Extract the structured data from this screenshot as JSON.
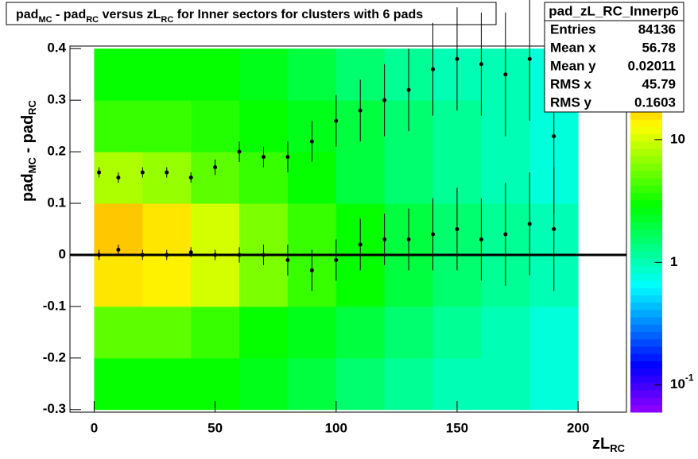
{
  "chart_data": {
    "type": "heatmap-profile",
    "title": [
      "pad",
      "MC",
      " - pad",
      "RC",
      " versus zL",
      "RC",
      " for Inner sectors for clusters with 6 pads"
    ],
    "xlabel": [
      "zL",
      "RC"
    ],
    "ylabel": [
      "pad",
      "MC",
      " - pad",
      "RC"
    ],
    "xlim": [
      -10,
      220
    ],
    "xticks": [
      0,
      50,
      100,
      150,
      200
    ],
    "ylim": [
      -0.305,
      0.405
    ],
    "yticks": [
      -0.3,
      -0.2,
      -0.1,
      0,
      0.1,
      0.2,
      0.3,
      0.4
    ],
    "zlim": [
      0.06,
      58
    ],
    "zlog": true,
    "zticks": [
      {
        "value": 0.1,
        "label": "10",
        "exponent": "-1"
      },
      1,
      10
    ],
    "heat": {
      "x_edges": [
        0,
        20,
        40,
        60,
        80,
        100,
        120,
        140,
        160,
        180,
        200
      ],
      "y_edges": [
        -0.3,
        -0.2,
        -0.1,
        0,
        0.1,
        0.2,
        0.3,
        0.4
      ],
      "counts": [
        [
          3,
          3,
          3,
          2.5,
          2,
          1.5,
          1.2,
          1,
          1,
          0.8
        ],
        [
          5,
          5,
          4,
          3,
          2.5,
          2,
          1.5,
          1.2,
          1,
          0.8
        ],
        [
          15,
          14,
          10,
          6,
          4,
          3,
          2,
          1.5,
          1.2,
          1
        ],
        [
          18,
          15,
          10,
          6,
          4,
          3,
          2,
          1.5,
          1.2,
          1
        ],
        [
          8,
          7,
          5,
          4,
          3,
          2,
          1.5,
          1.2,
          1,
          0.8
        ],
        [
          4,
          4,
          3.5,
          3,
          2.5,
          2,
          1.5,
          1.2,
          1,
          0.8
        ],
        [
          3,
          3,
          3,
          2.5,
          2,
          1.5,
          1.2,
          1,
          1,
          0.8
        ]
      ]
    },
    "x": [
      2,
      10,
      20,
      30,
      40,
      50,
      60,
      70,
      80,
      90,
      100,
      110,
      120,
      130,
      140,
      150,
      160,
      170,
      180,
      190
    ],
    "series": [
      {
        "color": "#000000",
        "values": [
          0.16,
          0.15,
          0.16,
          0.16,
          0.15,
          0.17,
          0.2,
          0.19,
          0.19,
          0.22,
          0.26,
          0.28,
          0.3,
          0.32,
          0.36,
          0.38,
          0.37,
          0.35,
          0.38,
          0.23
        ],
        "errors": [
          0.01,
          0.01,
          0.01,
          0.01,
          0.01,
          0.015,
          0.02,
          0.02,
          0.03,
          0.04,
          0.05,
          0.06,
          0.07,
          0.08,
          0.09,
          0.1,
          0.1,
          0.12,
          0.12,
          0.15
        ]
      },
      {
        "color": "#000000",
        "values": [
          0,
          0.01,
          0,
          0,
          0.005,
          0,
          0,
          0,
          -0.01,
          -0.03,
          -0.01,
          0.02,
          0.03,
          0.03,
          0.04,
          0.05,
          0.03,
          0.04,
          0.06,
          0.05
        ],
        "errors": [
          0.01,
          0.01,
          0.01,
          0.01,
          0.01,
          0.01,
          0.015,
          0.02,
          0.03,
          0.04,
          0.04,
          0.05,
          0.05,
          0.06,
          0.07,
          0.08,
          0.08,
          0.1,
          0.1,
          0.12
        ]
      }
    ],
    "hline": 0,
    "stats": {
      "name": "pad_zL_RC_Innerp6",
      "rows": [
        [
          "Entries",
          84136
        ],
        [
          "Mean x",
          56.78
        ],
        [
          "Mean y",
          0.02011
        ],
        [
          "RMS x",
          45.79
        ],
        [
          "RMS y",
          0.1603
        ]
      ]
    }
  }
}
